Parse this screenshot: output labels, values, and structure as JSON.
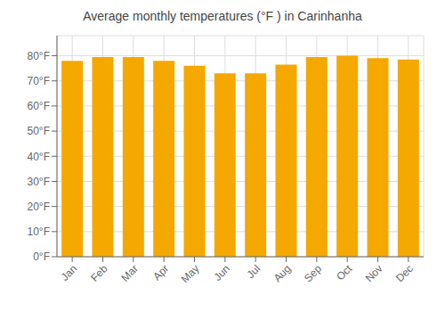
{
  "chart_data": {
    "type": "bar",
    "title": "Average monthly temperatures (°F ) in Carinhanha",
    "categories": [
      "Jan",
      "Feb",
      "Mar",
      "Apr",
      "May",
      "Jun",
      "Jul",
      "Aug",
      "Sep",
      "Oct",
      "Nov",
      "Dec"
    ],
    "values": [
      78,
      79.5,
      79.5,
      78,
      76,
      73,
      73,
      76.5,
      79.5,
      80,
      79,
      78.5
    ],
    "color": "#F5A800",
    "ylim": [
      0,
      88
    ],
    "yticks": [
      {
        "value": 0,
        "label": "0°F"
      },
      {
        "value": 10,
        "label": "10°F"
      },
      {
        "value": 20,
        "label": "20°F"
      },
      {
        "value": 30,
        "label": "30°F"
      },
      {
        "value": 40,
        "label": "40°F"
      },
      {
        "value": 50,
        "label": "50°F"
      },
      {
        "value": 60,
        "label": "60°F"
      },
      {
        "value": 70,
        "label": "70°F"
      },
      {
        "value": 80,
        "label": "80°F"
      }
    ],
    "grid": true
  }
}
